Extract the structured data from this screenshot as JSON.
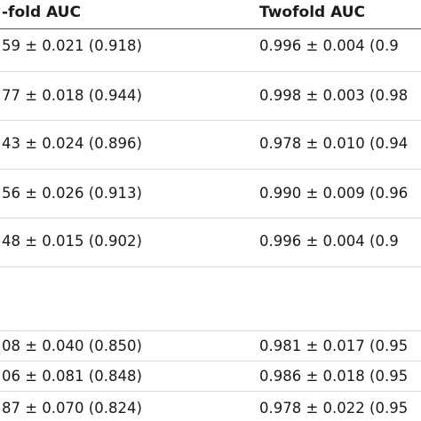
{
  "table": {
    "header": [
      "-fold AUC",
      "Twofold AUC"
    ],
    "rows": [
      [
        "59 ± 0.021 (0.918)",
        "0.996 ± 0.004 (0.9"
      ],
      [
        "77 ± 0.018 (0.944)",
        "0.998 ± 0.003 (0.98"
      ],
      [
        "43 ± 0.024 (0.896)",
        "0.978 ± 0.010 (0.94"
      ],
      [
        "56 ± 0.026 (0.913)",
        "0.990 ± 0.009 (0.96"
      ],
      [
        "48 ± 0.015 (0.902)",
        "0.996 ± 0.004 (0.9"
      ],
      [
        "08 ± 0.040 (0.850)",
        "0.981 ± 0.017 (0.95"
      ],
      [
        "06 ± 0.081 (0.848)",
        "0.986 ± 0.018 (0.95"
      ],
      [
        "87 ± 0.070 (0.824)",
        "0.978 ± 0.022 (0.95"
      ]
    ]
  }
}
